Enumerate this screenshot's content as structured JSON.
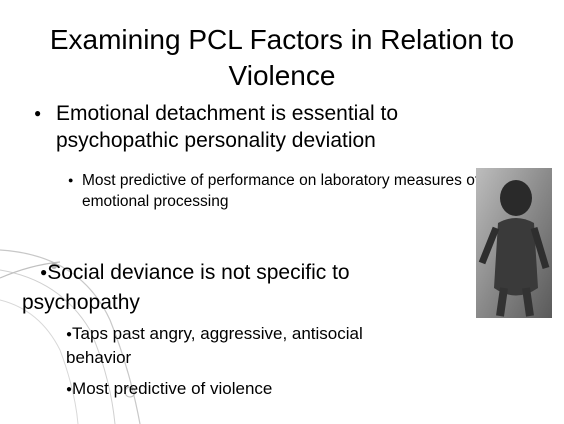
{
  "title": "Examining PCL Factors in Relation to Violence",
  "bullets": [
    {
      "text": "Emotional detachment is essential to psychopathic personality deviation",
      "sub": [
        "Most predictive of performance on laboratory measures of emotional processing"
      ]
    },
    {
      "text": "Social deviance is not specific to psychopathy",
      "sub": [
        "Taps past angry, aggressive, antisocial behavior",
        "Most predictive of violence"
      ]
    }
  ]
}
